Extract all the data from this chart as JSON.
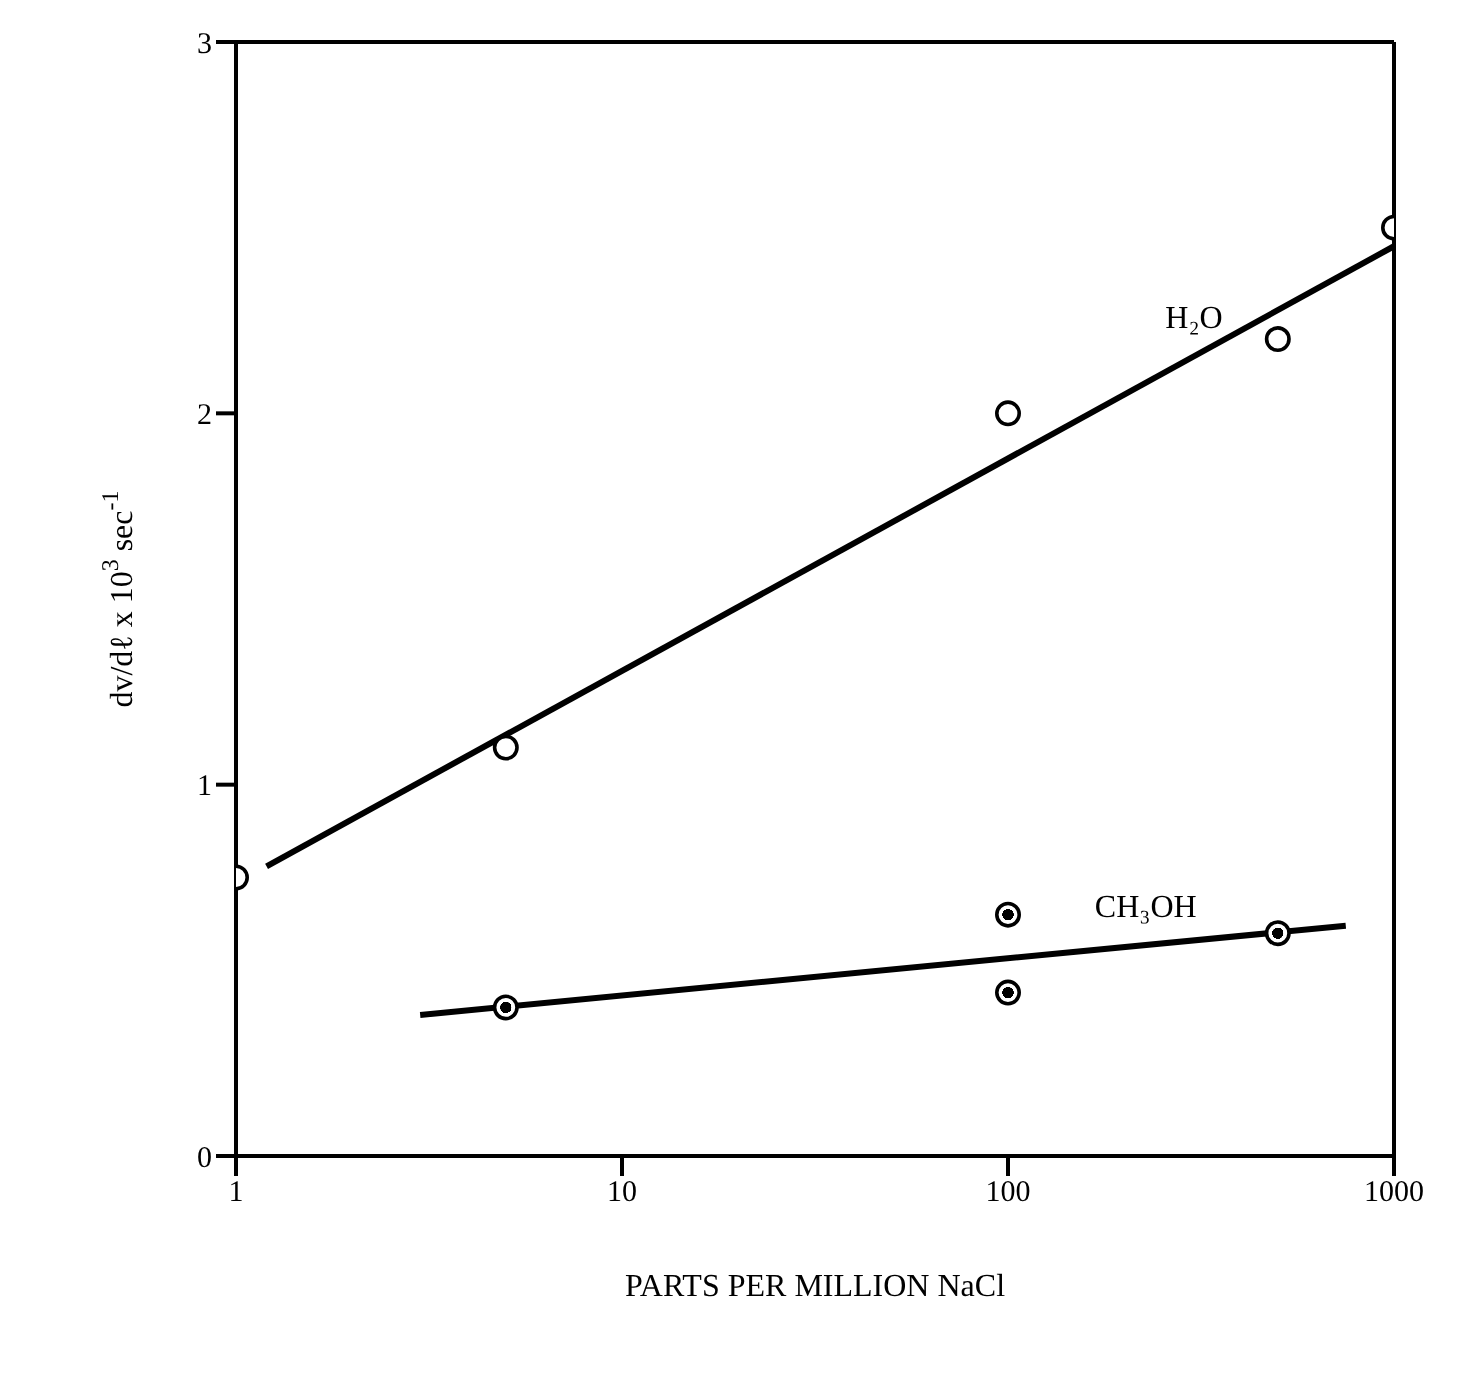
{
  "chart_data": {
    "type": "scatter",
    "xlabel": "PARTS PER MILLION  NaCl",
    "ylabel": "dv/dℓ x 10$^{3}$ sec$^{-1}$",
    "log": "x",
    "xlim": [
      1,
      1000
    ],
    "xticks": [
      1,
      10,
      100,
      1000
    ],
    "ylim": [
      0,
      3
    ],
    "yticks": [
      0,
      1,
      2,
      3
    ],
    "grid": false,
    "legend": false,
    "marker": "circle",
    "series": [
      {
        "color": "#000000",
        "x": [
          1,
          5,
          100,
          500,
          1000
        ],
        "values": [
          0.75,
          1.1,
          2.0,
          2.2,
          2.5
        ]
      },
      {
        "color": "#000000",
        "x": [
          5,
          100,
          100,
          500
        ],
        "values": [
          0.4,
          0.65,
          0.44,
          0.6
        ]
      },
      {
        "type": "line",
        "name": "H₂O",
        "marker": "none",
        "color": "#000000",
        "x": [
          1.2,
          1000
        ],
        "values": [
          0.78,
          2.45
        ]
      },
      {
        "type": "line",
        "name": "CH₃OH",
        "marker": "none",
        "color": "#000000",
        "x": [
          3,
          750
        ],
        "values": [
          0.38,
          0.62
        ]
      }
    ]
  }
}
